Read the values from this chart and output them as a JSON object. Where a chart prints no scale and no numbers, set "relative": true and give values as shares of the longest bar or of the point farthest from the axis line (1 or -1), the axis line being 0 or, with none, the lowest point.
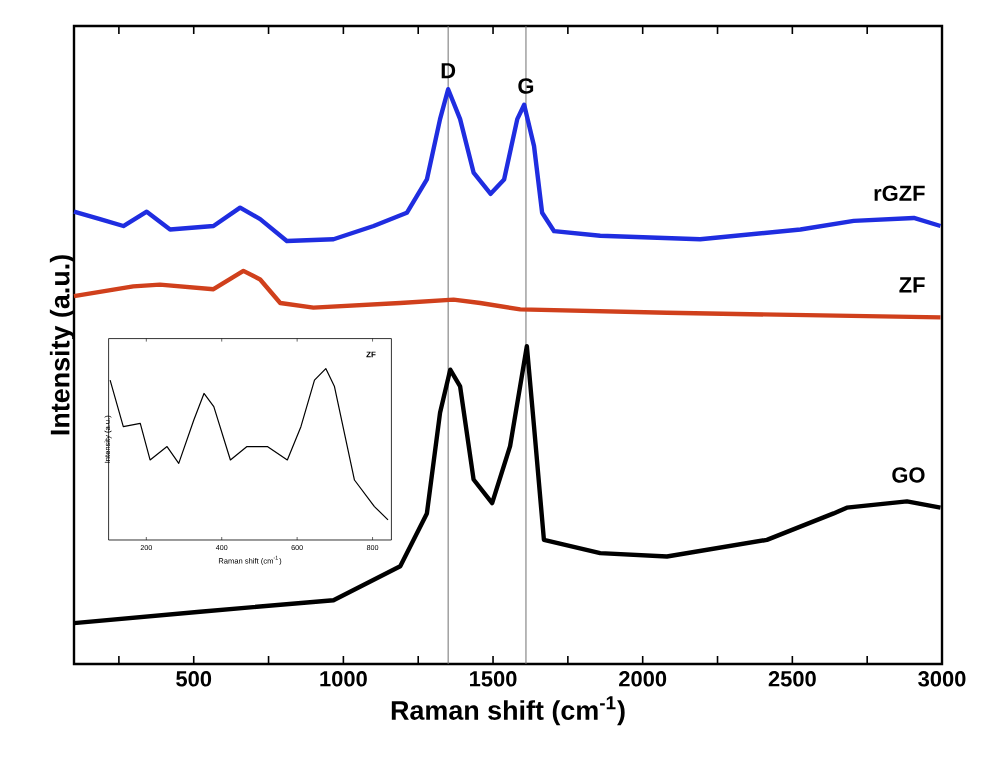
{
  "chart_data": [
    {
      "type": "line",
      "xlabel": "Raman shift (cm$^{-1}$)",
      "ylabel": "Intensity (a.u.)",
      "relative": true,
      "xlim": [
        100,
        3000
      ],
      "xticks": [
        {
          "value": 250,
          "label": null
        },
        500,
        {
          "value": 750,
          "label": null
        },
        1000,
        {
          "value": 1250,
          "label": null
        },
        1500,
        {
          "value": 1750,
          "label": null
        },
        2000,
        {
          "value": 2250,
          "label": null
        },
        2500,
        {
          "value": 2750,
          "label": null
        },
        3000
      ],
      "ref_lines": [
        {
          "axis": "x",
          "value": 1350,
          "color": "#707070"
        },
        {
          "axis": "x",
          "value": 1610,
          "color": "#707070"
        }
      ],
      "annotations": [
        {
          "text": "D",
          "x": 1350,
          "y": 1.0
        },
        {
          "text": "G",
          "x": 1610,
          "y": 0.973
        }
      ],
      "series": [
        {
          "name": "rGZF",
          "color": "#1f2de0",
          "x": [
            100,
            187,
            265,
            343,
            421,
            566,
            655,
            722,
            811,
            967,
            1101,
            1212,
            1279,
            1323,
            1350,
            1390,
            1435,
            1492,
            1537,
            1581,
            1604,
            1637,
            1664,
            1704,
            1858,
            2192,
            2527,
            2705,
            2906,
            2995
          ],
          "values": [
            0.787,
            0.774,
            0.762,
            0.787,
            0.756,
            0.762,
            0.794,
            0.774,
            0.736,
            0.739,
            0.762,
            0.785,
            0.843,
            0.948,
            1.0,
            0.948,
            0.855,
            0.818,
            0.843,
            0.948,
            0.973,
            0.901,
            0.785,
            0.753,
            0.745,
            0.739,
            0.756,
            0.771,
            0.776,
            0.762
          ]
        },
        {
          "name": "ZF",
          "color": "#d0401c",
          "x": [
            100,
            298,
            387,
            566,
            666,
            722,
            789,
            900,
            1190,
            1368,
            1457,
            1591,
            2081,
            2995
          ],
          "values": [
            0.64,
            0.657,
            0.66,
            0.652,
            0.684,
            0.669,
            0.628,
            0.62,
            0.628,
            0.634,
            0.628,
            0.617,
            0.611,
            0.603
          ]
        },
        {
          "name": "GO",
          "color": "#000000",
          "x": [
            100,
            521,
            967,
            1190,
            1279,
            1323,
            1357,
            1390,
            1435,
            1497,
            1557,
            1613,
            1637,
            1670,
            1858,
            2081,
            2415,
            2638,
            2682,
            2883,
            2995
          ],
          "values": [
            0.071,
            0.091,
            0.111,
            0.17,
            0.262,
            0.437,
            0.512,
            0.483,
            0.321,
            0.28,
            0.379,
            0.553,
            0.413,
            0.216,
            0.193,
            0.187,
            0.216,
            0.262,
            0.272,
            0.283,
            0.272
          ]
        }
      ]
    },
    {
      "type": "line",
      "title": "ZF",
      "xlabel": "Raman shift (cm$^{-1}$)",
      "ylabel": "Intensity (a.u.)",
      "relative": true,
      "xlim": [
        100,
        850
      ],
      "xticks": [
        200,
        400,
        600,
        800
      ],
      "series": [
        {
          "color": "#000000",
          "x": [
            104,
            139,
            184,
            210,
            255,
            286,
            326,
            353,
            379,
            423,
            467,
            521,
            574,
            610,
            646,
            676,
            699,
            752,
            805,
            841
          ],
          "values": [
            0.933,
            0.661,
            0.68,
            0.467,
            0.545,
            0.447,
            0.7,
            0.855,
            0.778,
            0.467,
            0.545,
            0.545,
            0.467,
            0.661,
            0.933,
            1.0,
            0.895,
            0.35,
            0.195,
            0.117
          ]
        }
      ]
    }
  ]
}
